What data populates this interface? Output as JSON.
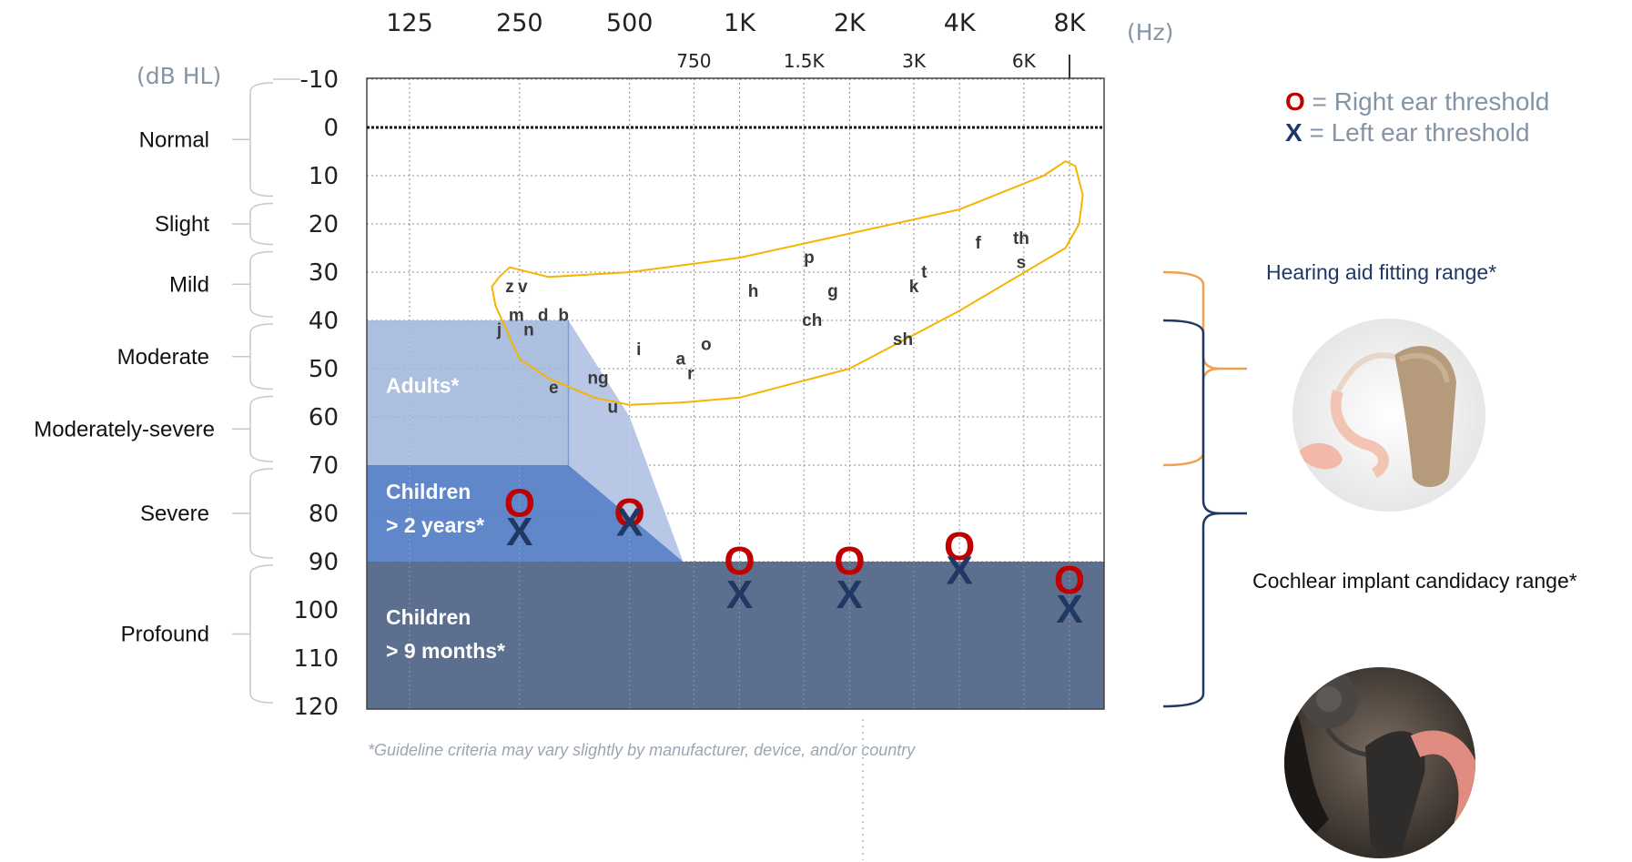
{
  "chart_data": {
    "type": "scatter",
    "x_unit_label": "(Hz)",
    "y_unit_label": "(dB HL)",
    "x_ticks_major": [
      "125",
      "250",
      "500",
      "1K",
      "2K",
      "4K",
      "8K"
    ],
    "x_ticks_minor": [
      "750",
      "1.5K",
      "3K",
      "6K"
    ],
    "x_ticks_major_hz": [
      125,
      250,
      500,
      1000,
      2000,
      4000,
      8000
    ],
    "x_ticks_minor_hz": [
      750,
      1500,
      3000,
      6000
    ],
    "y_ticks": [
      "-10",
      "0",
      "10",
      "20",
      "30",
      "40",
      "50",
      "60",
      "70",
      "80",
      "90",
      "100",
      "110",
      "120"
    ],
    "ylim": [
      -10,
      120
    ],
    "y_inverted": true,
    "x_scale": "log",
    "grid": true,
    "severity_bands": [
      {
        "label": "Normal",
        "range": [
          -10,
          15
        ]
      },
      {
        "label": "Slight",
        "range": [
          15,
          25
        ]
      },
      {
        "label": "Mild",
        "range": [
          25,
          40
        ]
      },
      {
        "label": "Moderate",
        "range": [
          40,
          55
        ]
      },
      {
        "label": "Moderately-severe",
        "range": [
          55,
          70
        ]
      },
      {
        "label": "Severe",
        "range": [
          70,
          90
        ]
      },
      {
        "label": "Profound",
        "range": [
          90,
          120
        ]
      }
    ],
    "regions": [
      {
        "label": "Adults*",
        "color": "#9eb4d9",
        "points": [
          [
            125,
            40
          ],
          [
            340,
            40
          ],
          [
            500,
            60
          ],
          [
            700,
            90
          ],
          [
            8000,
            90
          ]
        ]
      },
      {
        "label": "Children\n> 2 years*",
        "line1": "Children",
        "line2": "> 2 years*",
        "color": "#5b84c7",
        "points": [
          [
            125,
            70
          ],
          [
            340,
            70
          ],
          [
            700,
            90
          ]
        ]
      },
      {
        "label": "Children\n> 9 months*",
        "line1": "Children",
        "line2": "> 9 months*",
        "color": "#5d6f8e",
        "range": [
          90,
          120
        ]
      }
    ],
    "series": [
      {
        "name": "Right ear threshold",
        "marker": "O",
        "color": "#c00000",
        "x": [
          250,
          500,
          1000,
          2000,
          4000,
          8000
        ],
        "y": [
          78,
          80,
          90,
          90,
          87,
          94
        ]
      },
      {
        "name": "Left ear threshold",
        "marker": "X",
        "color": "#1f3864",
        "x": [
          250,
          500,
          1000,
          2000,
          4000,
          8000
        ],
        "y": [
          84,
          82,
          97,
          97,
          92,
          100
        ]
      }
    ],
    "speech_banana": {
      "color": "#f5b400",
      "sounds": [
        {
          "text": "z",
          "hz": 235,
          "db": 33
        },
        {
          "text": "v",
          "hz": 255,
          "db": 33
        },
        {
          "text": "m",
          "hz": 245,
          "db": 39
        },
        {
          "text": "d",
          "hz": 290,
          "db": 39
        },
        {
          "text": "b",
          "hz": 330,
          "db": 39
        },
        {
          "text": "j",
          "hz": 220,
          "db": 42
        },
        {
          "text": "n",
          "hz": 265,
          "db": 42
        },
        {
          "text": "e",
          "hz": 310,
          "db": 54
        },
        {
          "text": "ng",
          "hz": 410,
          "db": 52
        },
        {
          "text": "u",
          "hz": 450,
          "db": 58
        },
        {
          "text": "i",
          "hz": 530,
          "db": 46
        },
        {
          "text": "a",
          "hz": 690,
          "db": 48
        },
        {
          "text": "o",
          "hz": 810,
          "db": 45
        },
        {
          "text": "r",
          "hz": 735,
          "db": 51
        },
        {
          "text": "p",
          "hz": 1550,
          "db": 27
        },
        {
          "text": "h",
          "hz": 1090,
          "db": 34
        },
        {
          "text": "g",
          "hz": 1800,
          "db": 34
        },
        {
          "text": "ch",
          "hz": 1580,
          "db": 40
        },
        {
          "text": "k",
          "hz": 3000,
          "db": 33
        },
        {
          "text": "t",
          "hz": 3200,
          "db": 30
        },
        {
          "text": "sh",
          "hz": 2800,
          "db": 44
        },
        {
          "text": "f",
          "hz": 4500,
          "db": 24
        },
        {
          "text": "th",
          "hz": 5900,
          "db": 23
        },
        {
          "text": "s",
          "hz": 5900,
          "db": 28
        }
      ]
    }
  },
  "legend": {
    "right_marker": "O",
    "right_text": " = Right ear threshold",
    "left_marker": "X",
    "left_text": " = Left ear threshold",
    "right_color": "#c00000",
    "left_color": "#1f3864"
  },
  "ranges": {
    "hearing_aid": {
      "label": "Hearing aid fitting range*",
      "color": "#f0a050",
      "db": [
        30,
        70
      ]
    },
    "cochlear": {
      "label": "Cochlear implant candidacy range*",
      "color": "#1f3864",
      "db": [
        40,
        120
      ]
    }
  },
  "footnote": "*Guideline criteria may vary slightly by manufacturer, device, and/or country",
  "images": [
    {
      "name": "hearing-aid-photo",
      "alt": "behind-the-ear hearing aid"
    },
    {
      "name": "cochlear-implant-photo",
      "alt": "cochlear implant processor on ear"
    }
  ]
}
